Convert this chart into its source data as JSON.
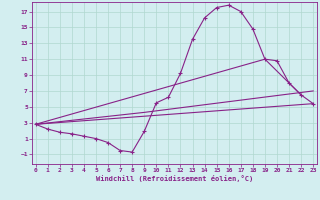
{
  "xlabel": "Windchill (Refroidissement éolien,°C)",
  "background_color": "#d3eef0",
  "grid_color": "#b0d8d0",
  "line_color": "#882288",
  "x_ticks": [
    0,
    1,
    2,
    3,
    4,
    5,
    6,
    7,
    8,
    9,
    10,
    11,
    12,
    13,
    14,
    15,
    16,
    17,
    18,
    19,
    20,
    21,
    22,
    23
  ],
  "y_ticks": [
    -1,
    1,
    3,
    5,
    7,
    9,
    11,
    13,
    15,
    17
  ],
  "xlim": [
    -0.3,
    23.3
  ],
  "ylim": [
    -2.2,
    18.2
  ],
  "curve1_x": [
    0,
    1,
    2,
    3,
    4,
    5,
    6,
    7,
    8,
    9,
    10,
    11,
    12,
    13,
    14,
    15,
    16,
    17,
    18,
    19,
    20,
    21,
    22,
    23
  ],
  "curve1_y": [
    2.8,
    2.2,
    1.8,
    1.6,
    1.3,
    1.0,
    0.5,
    -0.5,
    -0.7,
    1.9,
    5.5,
    6.2,
    9.2,
    13.5,
    16.2,
    17.5,
    17.8,
    17.0,
    14.8,
    11.0,
    10.8,
    8.0,
    6.5,
    5.4
  ],
  "curve2_x": [
    0,
    23
  ],
  "curve2_y": [
    2.8,
    5.4
  ],
  "curve3_x": [
    0,
    9,
    23
  ],
  "curve3_y": [
    2.8,
    4.3,
    7.0
  ],
  "curve4_x": [
    0,
    19,
    22
  ],
  "curve4_y": [
    2.8,
    11.0,
    6.5
  ]
}
